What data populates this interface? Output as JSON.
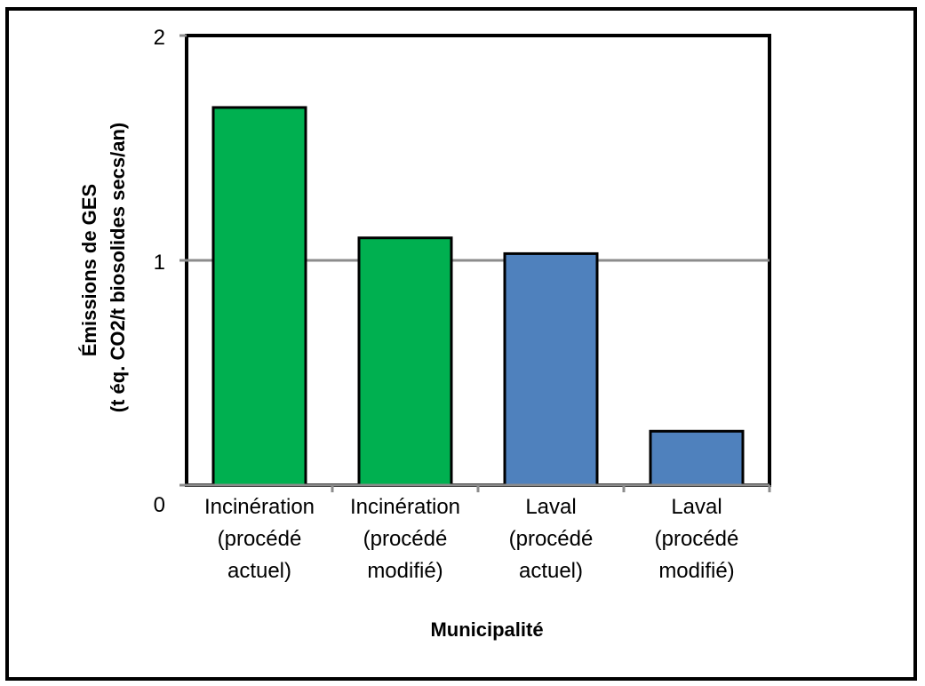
{
  "chart_data": {
    "type": "bar",
    "categories": [
      [
        "Incinération",
        "(procédé",
        "actuel)"
      ],
      [
        "Incinération",
        "(procédé",
        "modifié)"
      ],
      [
        "Laval",
        "(procédé",
        "actuel)"
      ],
      [
        "Laval",
        "(procédé",
        "modifié)"
      ]
    ],
    "values": [
      1.68,
      1.1,
      1.03,
      0.24
    ],
    "bar_colors": [
      "#00b050",
      "#00b050",
      "#4f81bd",
      "#4f81bd"
    ],
    "title": "",
    "xlabel": "Municipalité",
    "ylabel": [
      "Émissions de GES",
      "(t éq. CO2/t biosolides secs/an)"
    ],
    "ylim": [
      0,
      2
    ],
    "yticks": [
      "0",
      "1",
      "2"
    ],
    "grid": true
  }
}
